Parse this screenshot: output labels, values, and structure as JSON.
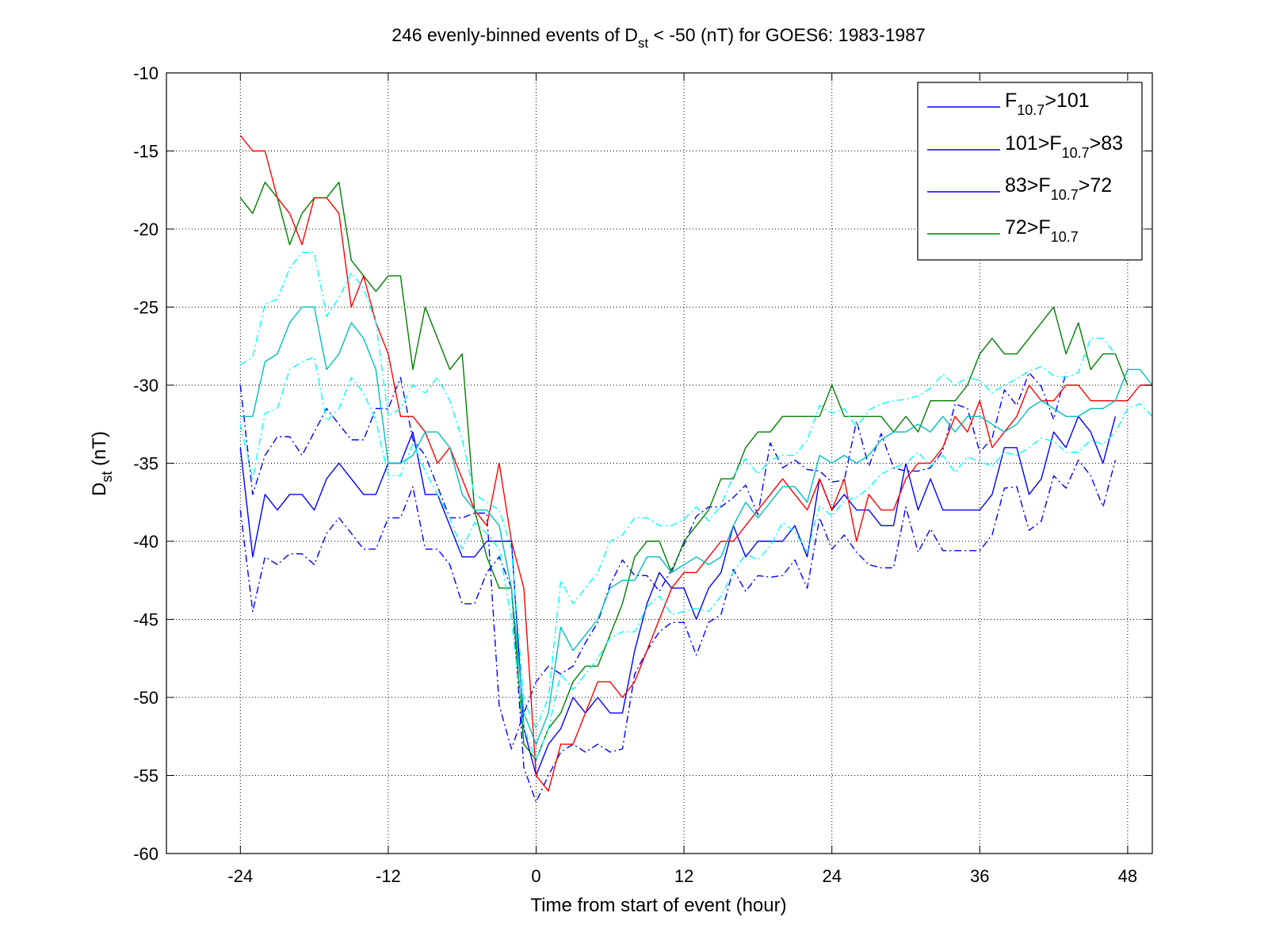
{
  "chart_data": {
    "type": "line",
    "title": {
      "pre": "246 evenly-binned events of D",
      "sub": "st",
      "post": " < -50 (nT) for GOES6: 1983-1987"
    },
    "xlabel": "Time from start of event (hour)",
    "ylabel": {
      "pre": "D",
      "sub": "st",
      "post": " (nT)"
    },
    "xlim": [
      -30,
      50
    ],
    "ylim": [
      -60,
      -10
    ],
    "xticks": [
      -24,
      -12,
      0,
      12,
      24,
      36,
      48
    ],
    "yticks": [
      -60,
      -55,
      -50,
      -45,
      -40,
      -35,
      -30,
      -25,
      -20,
      -15,
      -10
    ],
    "grid": true,
    "legend_position": "top-right",
    "legend": [
      {
        "series": 0,
        "parts": [
          "F",
          "_10.7",
          ">101"
        ]
      },
      {
        "series": 1,
        "parts": [
          "101>F",
          "_10.7",
          ">83"
        ]
      },
      {
        "series": 2,
        "parts": [
          "83>F",
          "_10.7",
          ">72"
        ]
      },
      {
        "series": 3,
        "parts": [
          "72>F",
          "_10.7"
        ]
      }
    ],
    "x_start": -24,
    "x_step": 1,
    "series": [
      {
        "color": "#0000ff",
        "style": "solid",
        "in_legend": true,
        "values": [
          -34,
          -41,
          -37,
          -38,
          -37,
          -37,
          -38,
          -36,
          -35,
          -36,
          -37,
          -37,
          -35,
          -35,
          -33,
          -37,
          -37,
          -39,
          -41,
          -41,
          -40,
          -40,
          -40,
          -52,
          -55,
          -53,
          -52,
          -50,
          -51,
          -50,
          -51,
          -51,
          -47,
          -44,
          -42,
          -43,
          -43,
          -45,
          -43,
          -42,
          -39,
          -41,
          -40,
          -40,
          -40,
          -39,
          -41,
          -36,
          -38,
          -37,
          -38,
          -38,
          -39,
          -39,
          -35,
          -38,
          -36,
          -38,
          -38,
          -38,
          -38,
          -37,
          -34,
          -34,
          -37,
          -36,
          -33,
          -34,
          -32,
          -33,
          -35,
          -32
        ]
      },
      {
        "color": "#0000ff",
        "style": "dashdot",
        "in_legend": false,
        "values": [
          -30,
          -37,
          -34.5,
          -33.3,
          -33.3,
          -34.5,
          -33,
          -31.5,
          -32.5,
          -33.5,
          -33.5,
          -31.5,
          -31.5,
          -29.5,
          -33.5,
          -34.5,
          -36.5,
          -38.5,
          -38.5,
          -38.2,
          -38.2,
          -50.5,
          -53.3,
          -51,
          -49,
          -48,
          -48.5,
          -48,
          -46.5,
          -45.2,
          -42.8,
          -41.2,
          -42.2,
          -42.2,
          -43.2,
          -41.8,
          -40.2,
          -38.4,
          -37.8,
          -37.8,
          -37.2,
          -36.4,
          -38.3,
          -33.7,
          -35.3,
          -34.8,
          -35.4,
          -35.5,
          -36.2,
          -36.1,
          -32.3,
          -35.2,
          -33.1,
          -35.3,
          -35.5,
          -35.5,
          -35.3,
          -34.2,
          -31.2,
          -31.5,
          -34.3,
          -33.4,
          -30.3,
          -31.3,
          -29.2,
          -30.1,
          -32.2,
          -29.2
        ]
      },
      {
        "color": "#0000ff",
        "style": "dashdot",
        "in_legend": false,
        "values": [
          -38,
          -44.5,
          -41,
          -41.5,
          -40.8,
          -40.8,
          -41.5,
          -39.5,
          -38.5,
          -39.5,
          -40.5,
          -40.5,
          -38.5,
          -38.5,
          -36.5,
          -40.5,
          -40.5,
          -41.5,
          -44,
          -44,
          -42,
          -41,
          -43,
          -54.5,
          -56.7,
          -55,
          -53.5,
          -53,
          -53.5,
          -53,
          -53.5,
          -53.3,
          -48.5,
          -47,
          -45.8,
          -45.2,
          -45.2,
          -47.3,
          -45.2,
          -44.7,
          -41.8,
          -43.2,
          -42.2,
          -42.3,
          -42.2,
          -41.2,
          -43,
          -38.5,
          -40.5,
          -39.6,
          -40.7,
          -41.5,
          -41.7,
          -41.7,
          -37.8,
          -40.7,
          -39.2,
          -40.6,
          -40.6,
          -40.6,
          -40.6,
          -39.6,
          -36.6,
          -36.5,
          -39.3,
          -38.7,
          -35.8,
          -36.6,
          -34.8,
          -35.8,
          -37.8,
          -34.8
        ]
      },
      {
        "color": "#007f00",
        "style": "solid",
        "in_legend": true,
        "values": [
          -18,
          -19,
          -17,
          -18,
          -21,
          -19,
          -18,
          -18,
          -17,
          -22,
          -23,
          -24,
          -23,
          -23,
          -29,
          -25,
          -27,
          -29,
          -28,
          -38,
          -41,
          -43,
          -43,
          -53,
          -54,
          -52,
          -51,
          -49,
          -48,
          -48,
          -46,
          -44,
          -41,
          -40,
          -40,
          -42,
          -40,
          -39,
          -38,
          -36,
          -36,
          -34,
          -33,
          -33,
          -32,
          -32,
          -32,
          -32,
          -30,
          -32,
          -32,
          -32,
          -32,
          -33,
          -32,
          -33,
          -31,
          -31,
          -31,
          -30,
          -28,
          -27,
          -28,
          -28,
          -27,
          -26,
          -25,
          -28,
          -26,
          -29,
          -28,
          -28,
          -30
        ]
      },
      {
        "color": "#ff0000",
        "style": "solid",
        "in_legend": true,
        "values": [
          -14,
          -15,
          -15,
          -18,
          -19,
          -21,
          -18,
          -18,
          -19,
          -25,
          -23,
          -26,
          -28,
          -32,
          -32,
          -33,
          -35,
          -34,
          -36,
          -38,
          -39,
          -35,
          -40,
          -43,
          -55,
          -56,
          -53,
          -53,
          -51,
          -49,
          -49,
          -50,
          -49,
          -47,
          -45,
          -43,
          -42,
          -42,
          -41,
          -40,
          -40,
          -39,
          -38,
          -37,
          -36,
          -37,
          -38,
          -36,
          -38,
          -36,
          -40,
          -37,
          -38,
          -38,
          -36,
          -35,
          -35,
          -34,
          -32,
          -33,
          -31,
          -34,
          -33,
          -32,
          -30,
          -31,
          -31,
          -30,
          -30,
          -31,
          -31,
          -31,
          -31,
          -30,
          -30
        ]
      },
      {
        "color": "#00bfbf",
        "style": "solid",
        "in_legend": true,
        "values": [
          -32,
          -32,
          -28.5,
          -28,
          -26,
          -25,
          -25,
          -29,
          -28,
          -26,
          -27,
          -29,
          -35,
          -35,
          -34.5,
          -33,
          -33,
          -34,
          -37,
          -38,
          -38,
          -39,
          -43,
          -51,
          -53,
          -51,
          -45.5,
          -47,
          -46,
          -45,
          -43,
          -42.5,
          -42.5,
          -41,
          -41,
          -42,
          -41.5,
          -41,
          -41.5,
          -41,
          -39,
          -37.5,
          -38.5,
          -37.5,
          -36.5,
          -36.5,
          -37.5,
          -34.5,
          -35,
          -34.5,
          -35,
          -34.5,
          -33.5,
          -33,
          -33,
          -32.5,
          -33,
          -32,
          -33,
          -32,
          -32,
          -32.5,
          -33,
          -32.5,
          -31.5,
          -31,
          -31.5,
          -32,
          -32,
          -31.5,
          -31.5,
          -31,
          -29,
          -29,
          -30
        ]
      },
      {
        "color": "#00ffff",
        "style": "dashdot",
        "in_legend": false,
        "values": [
          -28.7,
          -28.2,
          -24.8,
          -24.5,
          -22.5,
          -21.5,
          -21.5,
          -25.6,
          -24.4,
          -22.8,
          -23.8,
          -26,
          -32,
          -31.5,
          -30,
          -30.5,
          -29.5,
          -31,
          -33.5,
          -37,
          -37.5,
          -38,
          -40.5,
          -50.2,
          -52,
          -50,
          -42.5,
          -44,
          -43,
          -42,
          -40,
          -39.6,
          -38.5,
          -38.5,
          -39,
          -39,
          -38.6,
          -37.8,
          -38.7,
          -37.7,
          -35.8,
          -34.7,
          -35.7,
          -34.8,
          -34.5,
          -34.5,
          -33.5,
          -31.3,
          -31.8,
          -31.5,
          -32.7,
          -31.6,
          -31.2,
          -31,
          -30.9,
          -30.7,
          -30.2,
          -29.3,
          -30,
          -29.5,
          -29.7,
          -30.5,
          -30,
          -29.6,
          -29.1,
          -28.8,
          -29.4,
          -29.5,
          -29.2,
          -27,
          -27,
          -28
        ]
      },
      {
        "color": "#00ffff",
        "style": "dashdot",
        "in_legend": false,
        "values": [
          -32.5,
          -36,
          -31.8,
          -31.5,
          -29,
          -28.5,
          -28.2,
          -32.3,
          -31.5,
          -29.5,
          -30.5,
          -32.3,
          -35.8,
          -35.8,
          -33.7,
          -35.5,
          -37,
          -38.5,
          -40.5,
          -38.8,
          -39.5,
          -40.5,
          -45,
          -52,
          -54,
          -52,
          -48.5,
          -49.5,
          -48.5,
          -47.5,
          -46.2,
          -45.8,
          -45.8,
          -44.2,
          -43.5,
          -44.7,
          -44.5,
          -44.3,
          -44.5,
          -43.5,
          -42,
          -40.8,
          -41.2,
          -40.3,
          -38.8,
          -39.4,
          -40.7,
          -37.7,
          -38.4,
          -37.4,
          -37.2,
          -36.6,
          -35.7,
          -35.3,
          -35,
          -34.3,
          -35.2,
          -34.5,
          -35.6,
          -34.6,
          -34.9,
          -35.2,
          -34.3,
          -34.5,
          -34,
          -33.4,
          -33.6,
          -34.3,
          -34.3,
          -33.5,
          -33.8,
          -33,
          -31.5,
          -31.2,
          -32
        ]
      }
    ]
  }
}
